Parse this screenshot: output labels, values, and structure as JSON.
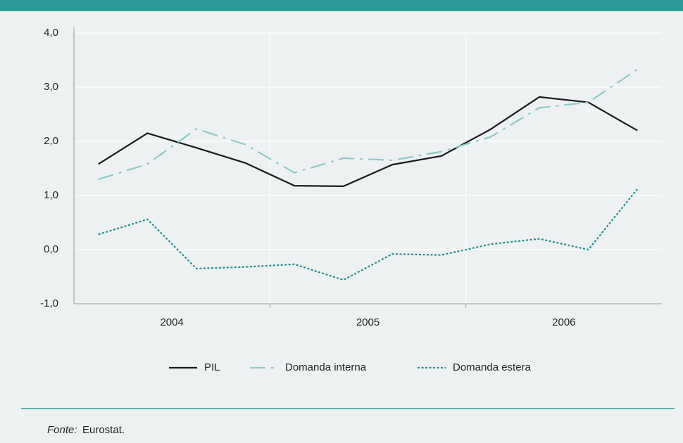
{
  "chart_data": {
    "type": "line",
    "categories": [
      null,
      null,
      null,
      null,
      null,
      null,
      null,
      null,
      null,
      null,
      null,
      null
    ],
    "x_groups": [
      "2004",
      "2005",
      "2006"
    ],
    "series": [
      {
        "name": "PIL",
        "color": "#1a1a1a",
        "dash": "solid",
        "values": [
          1.58,
          2.15,
          1.88,
          1.6,
          1.18,
          1.17,
          1.57,
          1.73,
          2.22,
          2.82,
          2.72,
          2.2
        ]
      },
      {
        "name": "Domanda interna",
        "color": "#8ccac8",
        "dash": "dashdot",
        "values": [
          1.3,
          1.58,
          2.23,
          1.94,
          1.42,
          1.69,
          1.65,
          1.81,
          2.08,
          2.62,
          2.72,
          3.33
        ]
      },
      {
        "name": "Domanda estera",
        "color": "#1f8f8c",
        "dash": "dotted",
        "values": [
          0.28,
          0.56,
          -0.35,
          -0.32,
          -0.27,
          -0.56,
          -0.08,
          -0.1,
          0.1,
          0.2,
          0.0,
          1.12
        ]
      }
    ],
    "ylim": [
      -1,
      4
    ],
    "yticks": [
      {
        "value": -1,
        "label": "-1,0"
      },
      {
        "value": 0,
        "label": "0,0"
      },
      {
        "value": 1,
        "label": "1,0"
      },
      {
        "value": 2,
        "label": "2,0"
      },
      {
        "value": 3,
        "label": "3,0"
      },
      {
        "value": 4,
        "label": "4,0"
      }
    ],
    "grid": true,
    "legend": "bottom",
    "source_label": "Fonte:",
    "source": "Eurostat."
  }
}
